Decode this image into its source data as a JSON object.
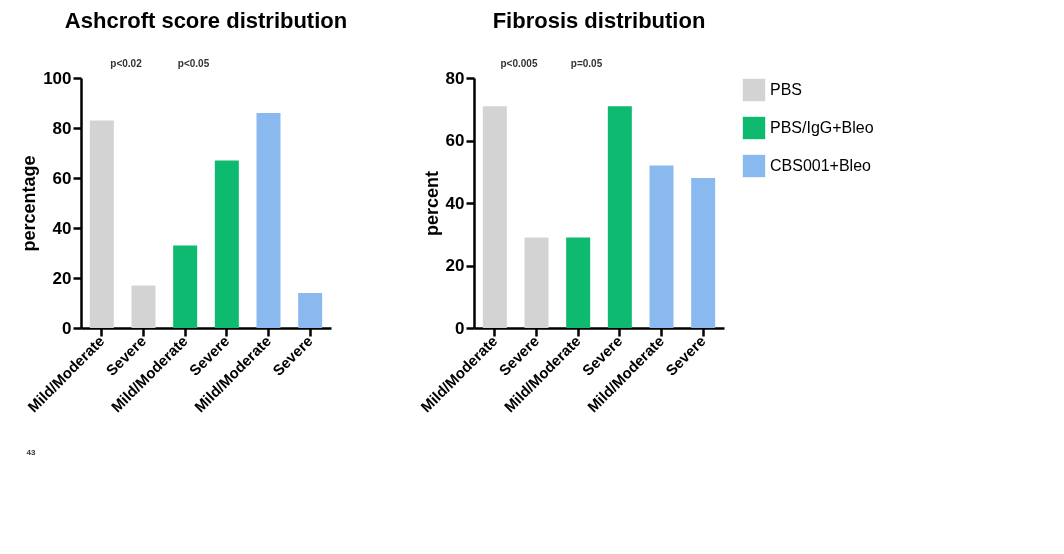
{
  "chart_data": [
    {
      "type": "bar",
      "title": "Ashcroft score distribution",
      "ylabel": "percentage",
      "categories": [
        "Mild/Moderate",
        "Severe",
        "Mild/Moderate",
        "Severe",
        "Mild/Moderate",
        "Severe"
      ],
      "series": [
        {
          "color": "#d3d3d3",
          "values": [
            83,
            17,
            null,
            null,
            null,
            null
          ]
        },
        {
          "color": "#0dba6f",
          "values": [
            null,
            null,
            33,
            67,
            null,
            null
          ]
        },
        {
          "color": "#8ab9f0",
          "values": [
            null,
            null,
            null,
            null,
            86,
            14
          ]
        }
      ],
      "ylim": [
        0,
        100
      ],
      "yticks": [
        0,
        20,
        40,
        60,
        80,
        100
      ],
      "grid": false,
      "legend": false,
      "annotations": [
        "p<0.02",
        "p<0.05",
        "43"
      ]
    },
    {
      "type": "bar",
      "title": "Fibrosis distribution",
      "ylabel": "percent",
      "categories": [
        "Mild/Moderate",
        "Severe",
        "Mild/Moderate",
        "Severe",
        "Mild/Moderate",
        "Severe"
      ],
      "series": [
        {
          "name": "PBS",
          "color": "#d3d3d3",
          "values": [
            71,
            29,
            null,
            null,
            null,
            null
          ]
        },
        {
          "name": "PBS/IgG+Bleo",
          "color": "#0dba6f",
          "values": [
            null,
            null,
            29,
            71,
            null,
            null
          ]
        },
        {
          "name": "CBS001+Bleo",
          "color": "#8ab9f0",
          "values": [
            null,
            null,
            null,
            null,
            52,
            48
          ]
        }
      ],
      "ylim": [
        0,
        80
      ],
      "yticks": [
        0,
        20,
        40,
        60,
        80
      ],
      "grid": false,
      "legend": "right",
      "annotations": [
        "p<0.005",
        "p=0.05"
      ]
    }
  ]
}
